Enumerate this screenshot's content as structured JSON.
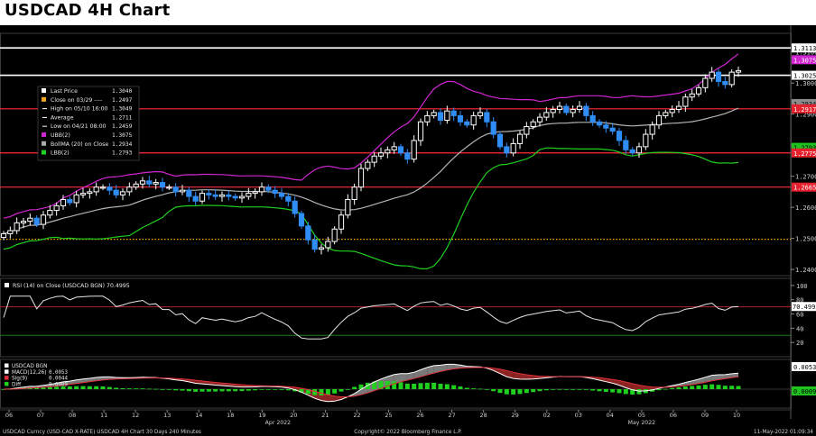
{
  "title": "USDCAD 4H Chart",
  "footer": {
    "left": "USDCAD Curncy (USD-CAD X-RATE) USDCAD 4H Chart 30 Days 240 Minutes",
    "center": "Copyright© 2022 Bloomberg Finance L.P.",
    "right": "11-May-2022 01:09:34"
  },
  "colors": {
    "candle_up": "#ffffff",
    "candle_down": "#2f8df5",
    "upper_band": "#d026d0",
    "middle_band": "#b4b4b4",
    "lower_band": "#1fd01f",
    "hline": "#ff2d3c",
    "dotted": "#ffa500"
  },
  "chart_data": [
    {
      "type": "candlestick",
      "panel": "price",
      "ylim": [
        1.238,
        1.316
      ],
      "y_ticks": [
        1.24,
        1.25,
        1.26,
        1.27,
        1.28,
        1.29,
        1.3,
        1.31
      ],
      "y_tick_labels": [
        "1.2400",
        "1.2500",
        "1.2600",
        "1.2700",
        "1.2800",
        "1.2900",
        "1.3000",
        "1.3100"
      ],
      "x_tick_labels": [
        "06",
        "07",
        "08",
        "11",
        "12",
        "13",
        "14",
        "18",
        "19",
        "20",
        "21",
        "22",
        "25",
        "26",
        "27",
        "28",
        "29",
        "02",
        "03",
        "04",
        "05",
        "06",
        "09",
        "10"
      ],
      "month_labels": [
        {
          "text": "Apr 2022",
          "at": 8.5
        },
        {
          "text": "May 2022",
          "at": 20
        }
      ],
      "legend": [
        {
          "marker": "white",
          "label": "Last Price",
          "value": "1.3040"
        },
        {
          "marker": "orange",
          "label": "Close on 03/29 ----",
          "value": "1.2497"
        },
        {
          "marker": "tick",
          "label": "High on 05/10 16:00",
          "value": "1.3049"
        },
        {
          "marker": "line",
          "label": "Average",
          "value": "1.2711"
        },
        {
          "marker": "tick",
          "label": "Low on 04/21 08:00",
          "value": "1.2459"
        },
        {
          "marker": "magenta",
          "label": "UBB(2)",
          "value": "1.3075"
        },
        {
          "marker": "gray",
          "label": "BollMA (20) on Close",
          "value": "1.2934"
        },
        {
          "marker": "green",
          "label": "LBB(2)",
          "value": "1.2793"
        }
      ],
      "right_labels": [
        {
          "value": 1.3113,
          "text": "1.3113",
          "style": "white-box"
        },
        {
          "value": 1.3075,
          "text": "1.3075",
          "style": "magenta"
        },
        {
          "value": 1.3025,
          "text": "1.3025",
          "style": "white-box"
        },
        {
          "value": 1.2934,
          "text": "1.2934",
          "style": "gray"
        },
        {
          "value": 1.2917,
          "text": "1.2917",
          "style": "red"
        },
        {
          "value": 1.2793,
          "text": "1.2793",
          "style": "green"
        },
        {
          "value": 1.2775,
          "text": "1.2775",
          "style": "red"
        },
        {
          "value": 1.2665,
          "text": "1.2665",
          "style": "red"
        }
      ],
      "hlines": [
        {
          "value": 1.3113,
          "color": "white"
        },
        {
          "value": 1.3025,
          "color": "white"
        },
        {
          "value": 1.2917,
          "color": "red"
        },
        {
          "value": 1.2775,
          "color": "red"
        },
        {
          "value": 1.2665,
          "color": "red"
        },
        {
          "value": 1.2497,
          "color": "orange-dotted"
        }
      ],
      "close": [
        1.2515,
        1.2525,
        1.255,
        1.2555,
        1.2565,
        1.2545,
        1.2575,
        1.259,
        1.2605,
        1.2625,
        1.2615,
        1.264,
        1.2645,
        1.265,
        1.2665,
        1.2665,
        1.2655,
        1.264,
        1.265,
        1.2665,
        1.2675,
        1.2685,
        1.2675,
        1.268,
        1.2665,
        1.2665,
        1.265,
        1.2655,
        1.2635,
        1.262,
        1.2645,
        1.264,
        1.2635,
        1.264,
        1.2635,
        1.263,
        1.2635,
        1.2645,
        1.265,
        1.2665,
        1.2655,
        1.2645,
        1.2635,
        1.262,
        1.258,
        1.254,
        1.2495,
        1.2465,
        1.247,
        1.249,
        1.253,
        1.2575,
        1.2625,
        1.2665,
        1.2725,
        1.2745,
        1.2765,
        1.2775,
        1.2785,
        1.2795,
        1.2775,
        1.2755,
        1.2815,
        1.2875,
        1.2895,
        1.2905,
        1.288,
        1.291,
        1.2895,
        1.2875,
        1.2865,
        1.2895,
        1.2905,
        1.2875,
        1.2835,
        1.2795,
        1.2775,
        1.2805,
        1.2835,
        1.286,
        1.2875,
        1.289,
        1.2905,
        1.2915,
        1.2925,
        1.2905,
        1.2915,
        1.2925,
        1.2895,
        1.2875,
        1.2865,
        1.2855,
        1.2845,
        1.2815,
        1.2785,
        1.2775,
        1.2795,
        1.2835,
        1.2865,
        1.2895,
        1.2905,
        1.2915,
        1.2925,
        1.2955,
        1.2965,
        1.2985,
        1.3015,
        1.3035,
        1.3005,
        1.2995,
        1.3035,
        1.304
      ]
    },
    {
      "type": "line",
      "panel": "rsi",
      "legend": "RSI (14)  on Close (USDCAD BGN) 70.4995",
      "last_value": "70.4995",
      "ylim": [
        0,
        110
      ],
      "y_ticks": [
        20,
        40,
        60,
        80,
        100
      ],
      "y_tick_labels": [
        "20",
        "40",
        "60",
        "80",
        "100"
      ],
      "hlines": [
        {
          "value": 70,
          "color": "red"
        },
        {
          "value": 30,
          "color": "green"
        }
      ]
    },
    {
      "type": "histogram+line",
      "panel": "macd",
      "legend": [
        {
          "marker": "white",
          "label": "USDCAD BGN",
          "value": ""
        },
        {
          "marker": "white",
          "label": "MACD(12,26)",
          "value": "0.0053"
        },
        {
          "marker": "red",
          "label": "Sig(9)",
          "value": "0.0044"
        },
        {
          "marker": "green",
          "label": "Diff",
          "value": "0.0009"
        }
      ],
      "right_labels": [
        {
          "text": "0.0053",
          "style": "white-box"
        },
        {
          "text": "0.0009",
          "style": "green"
        }
      ]
    }
  ]
}
